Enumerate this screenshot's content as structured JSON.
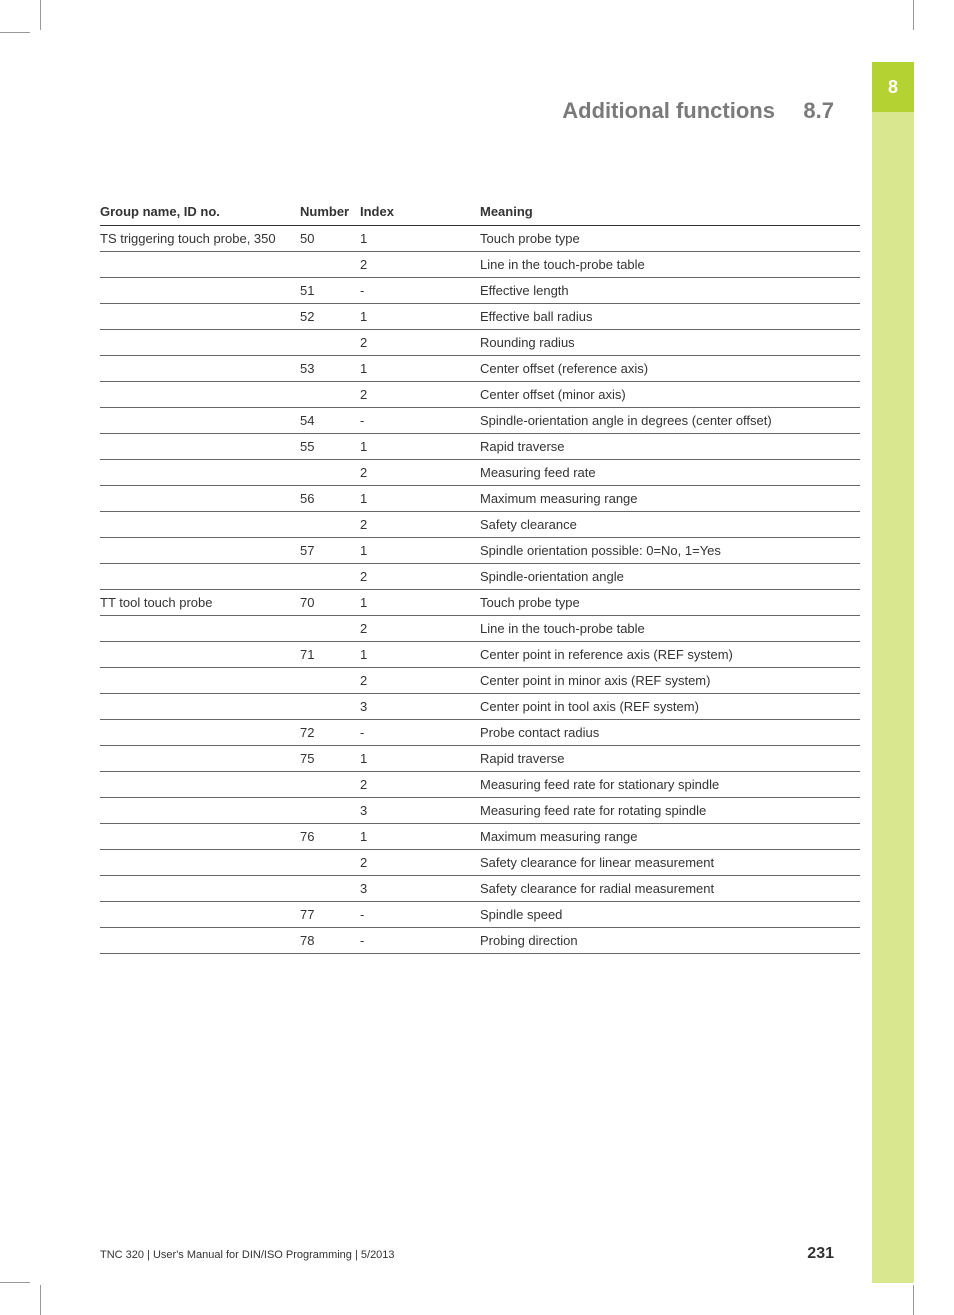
{
  "sideTab": "8",
  "header": {
    "title": "Additional functions",
    "section": "8.7"
  },
  "table": {
    "headers": {
      "group": "Group name, ID no.",
      "number": "Number",
      "index": "Index",
      "meaning": "Meaning"
    },
    "rows": [
      {
        "group": "TS triggering touch probe, 350",
        "number": "50",
        "index": "1",
        "meaning": "Touch probe type"
      },
      {
        "group": "",
        "number": "",
        "index": "2",
        "meaning": "Line in the touch-probe table"
      },
      {
        "group": "",
        "number": "51",
        "index": "-",
        "meaning": "Effective length"
      },
      {
        "group": "",
        "number": "52",
        "index": "1",
        "meaning": "Effective ball radius"
      },
      {
        "group": "",
        "number": "",
        "index": "2",
        "meaning": "Rounding radius"
      },
      {
        "group": "",
        "number": "53",
        "index": "1",
        "meaning": "Center offset (reference axis)"
      },
      {
        "group": "",
        "number": "",
        "index": "2",
        "meaning": "Center offset (minor axis)"
      },
      {
        "group": "",
        "number": "54",
        "index": "-",
        "meaning": "Spindle-orientation angle in degrees (center offset)"
      },
      {
        "group": "",
        "number": "55",
        "index": "1",
        "meaning": "Rapid traverse"
      },
      {
        "group": "",
        "number": "",
        "index": "2",
        "meaning": "Measuring feed rate"
      },
      {
        "group": "",
        "number": "56",
        "index": "1",
        "meaning": "Maximum measuring range"
      },
      {
        "group": "",
        "number": "",
        "index": "2",
        "meaning": "Safety clearance"
      },
      {
        "group": "",
        "number": "57",
        "index": "1",
        "meaning": "Spindle orientation possible: 0=No, 1=Yes"
      },
      {
        "group": "",
        "number": "",
        "index": "2",
        "meaning": "Spindle-orientation angle"
      },
      {
        "group": "TT tool touch probe",
        "number": "70",
        "index": "1",
        "meaning": "Touch probe type"
      },
      {
        "group": "",
        "number": "",
        "index": "2",
        "meaning": "Line in the touch-probe table"
      },
      {
        "group": "",
        "number": "71",
        "index": "1",
        "meaning": "Center point in reference axis (REF system)"
      },
      {
        "group": "",
        "number": "",
        "index": "2",
        "meaning": "Center point in minor axis (REF system)"
      },
      {
        "group": "",
        "number": "",
        "index": "3",
        "meaning": "Center point in tool axis (REF system)"
      },
      {
        "group": "",
        "number": "72",
        "index": "-",
        "meaning": "Probe contact radius"
      },
      {
        "group": "",
        "number": "75",
        "index": "1",
        "meaning": "Rapid traverse"
      },
      {
        "group": "",
        "number": "",
        "index": "2",
        "meaning": "Measuring feed rate for stationary spindle"
      },
      {
        "group": "",
        "number": "",
        "index": "3",
        "meaning": "Measuring feed rate for rotating spindle"
      },
      {
        "group": "",
        "number": "76",
        "index": "1",
        "meaning": "Maximum measuring range"
      },
      {
        "group": "",
        "number": "",
        "index": "2",
        "meaning": "Safety clearance for linear measurement"
      },
      {
        "group": "",
        "number": "",
        "index": "3",
        "meaning": "Safety clearance for radial measurement"
      },
      {
        "group": "",
        "number": "77",
        "index": "-",
        "meaning": "Spindle speed"
      },
      {
        "group": "",
        "number": "78",
        "index": "-",
        "meaning": "Probing direction"
      }
    ]
  },
  "footer": {
    "left": "TNC 320 | User's Manual for DIN/ISO Programming | 5/2013",
    "page": "231"
  }
}
